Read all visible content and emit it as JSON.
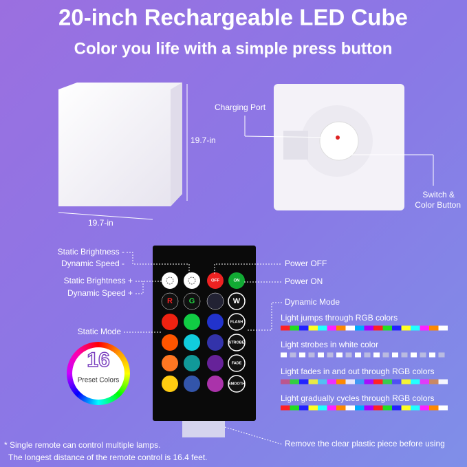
{
  "header": {
    "title": "20-inch Rechargeable LED Cube",
    "subtitle": "Color you life with a simple press button"
  },
  "front": {
    "height": "19.7-in",
    "width": "19.7-in"
  },
  "back": {
    "charging": "Charging Port",
    "switch": [
      "Switch &",
      "Color Button"
    ]
  },
  "remote": {
    "left": [
      "Static Brightness -",
      "Dynamic Speed -",
      "Static Brightness +",
      "Dynamic Speed +",
      "Static Mode"
    ],
    "right": [
      "Power OFF",
      "Power ON",
      "Dynamic Mode"
    ],
    "buttons": [
      "OFF",
      "ON",
      "R",
      "G",
      "W",
      "FLASH",
      "STROBE",
      "FADE",
      "SMOOTH"
    ]
  },
  "preset": {
    "count": "16",
    "label": "Preset Colors"
  },
  "modes": [
    "Light jumps through RGB colors",
    "Light strobes in white color",
    "Light fades in and out through RGB colors",
    "Light  gradually cycles through RGB colors"
  ],
  "footer": {
    "notes": [
      "* Single remote can control multiple lamps.",
      "The longest distance of the remote control is 16.4 feet."
    ],
    "remove": "Remove the clear plastic piece before using"
  }
}
